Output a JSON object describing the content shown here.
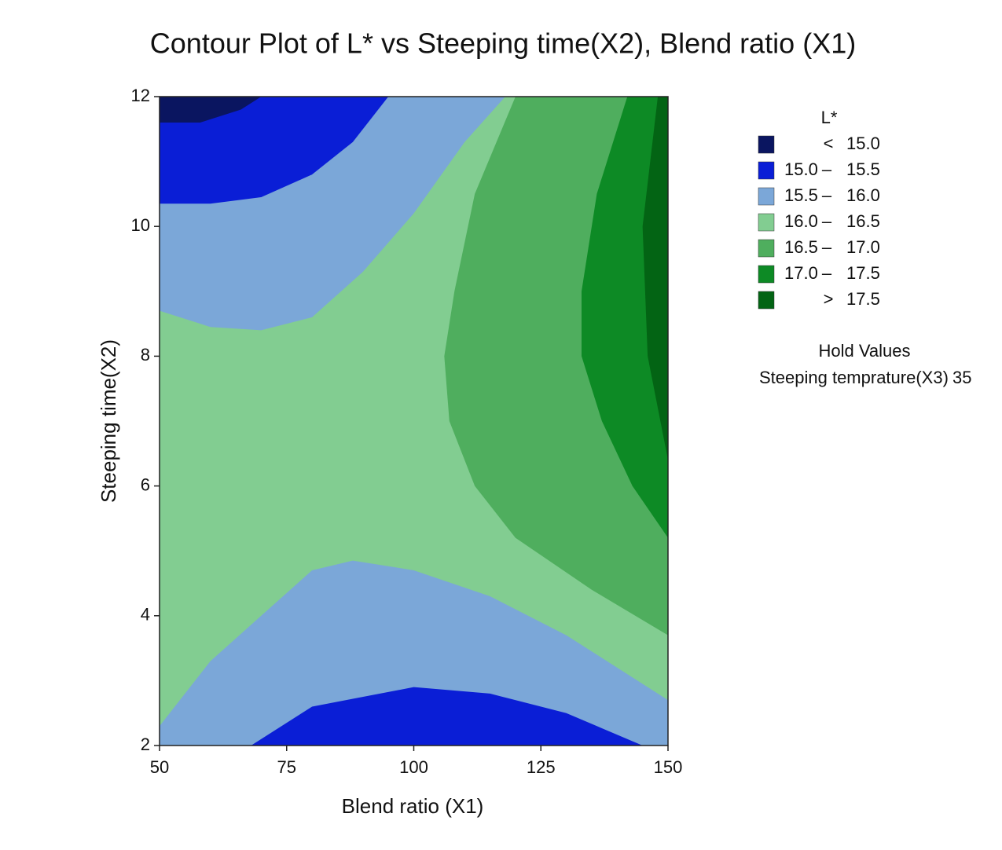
{
  "chart_data": {
    "type": "contour",
    "title": "Contour Plot of L* vs Steeping time(X2), Blend ratio (X1)",
    "x_label": "Blend ratio (X1)",
    "y_label": "Steeping time(X2)",
    "xlim": [
      50,
      150
    ],
    "xticks": [
      50,
      75,
      100,
      125,
      150
    ],
    "ylim": [
      2,
      12
    ],
    "yticks": [
      2,
      4,
      6,
      8,
      10,
      12
    ],
    "background_color": "#82cd91",
    "regions": [
      {
        "color": "#7ba7d8",
        "x": [
          50,
          60,
          70,
          80,
          90,
          100,
          110,
          118,
          50
        ],
        "y": [
          8.7,
          8.45,
          8.4,
          8.6,
          9.3,
          10.2,
          11.3,
          12,
          12
        ]
      },
      {
        "color": "#0a1ed6",
        "x": [
          50,
          60,
          70,
          80,
          88,
          95,
          50
        ],
        "y": [
          10.35,
          10.35,
          10.45,
          10.8,
          11.3,
          12,
          12
        ]
      },
      {
        "color": "#0a1560",
        "x": [
          50,
          58,
          66,
          70,
          50
        ],
        "y": [
          11.6,
          11.6,
          11.8,
          12,
          12
        ]
      },
      {
        "color": "#7ba7d8",
        "x": [
          50,
          60,
          70,
          80,
          88,
          100,
          115,
          130,
          150,
          150,
          50
        ],
        "y": [
          2.3,
          3.3,
          4.0,
          4.7,
          4.85,
          4.7,
          4.3,
          3.7,
          2.7,
          2,
          2
        ]
      },
      {
        "color": "#0a1ed6",
        "x": [
          68,
          80,
          100,
          115,
          130,
          145
        ],
        "y": [
          2,
          2.6,
          2.9,
          2.8,
          2.5,
          2
        ]
      },
      {
        "color": "#4fae5e",
        "x": [
          120,
          112,
          108,
          106,
          107,
          112,
          120,
          135,
          150,
          150
        ],
        "y": [
          12,
          10.5,
          9,
          8,
          7,
          6,
          5.2,
          4.4,
          3.7,
          12
        ]
      },
      {
        "color": "#0d8a25",
        "x": [
          142,
          136,
          133,
          133,
          137,
          143,
          150,
          150
        ],
        "y": [
          12,
          10.5,
          9,
          8,
          7,
          6,
          5.2,
          12
        ]
      },
      {
        "color": "#036414",
        "x": [
          148,
          145,
          146,
          150,
          150
        ],
        "y": [
          12,
          10,
          8,
          6.4,
          12
        ]
      }
    ],
    "legend": {
      "title": "L*",
      "items": [
        {
          "color": "#0a1560",
          "label": [
            "<",
            "15.0"
          ]
        },
        {
          "color": "#0a1ed6",
          "label": [
            "15.0",
            "–",
            "15.5"
          ]
        },
        {
          "color": "#7ba7d8",
          "label": [
            "15.5",
            "–",
            "16.0"
          ]
        },
        {
          "color": "#82cd91",
          "label": [
            "16.0",
            "–",
            "16.5"
          ]
        },
        {
          "color": "#4fae5e",
          "label": [
            "16.5",
            "–",
            "17.0"
          ]
        },
        {
          "color": "#0d8a25",
          "label": [
            "17.0",
            "–",
            "17.5"
          ]
        },
        {
          "color": "#036414",
          "label": [
            ">",
            "17.5"
          ]
        }
      ]
    },
    "hold_values": {
      "title": "Hold Values",
      "variable": "Steeping temprature(X3)",
      "value": 35
    }
  }
}
